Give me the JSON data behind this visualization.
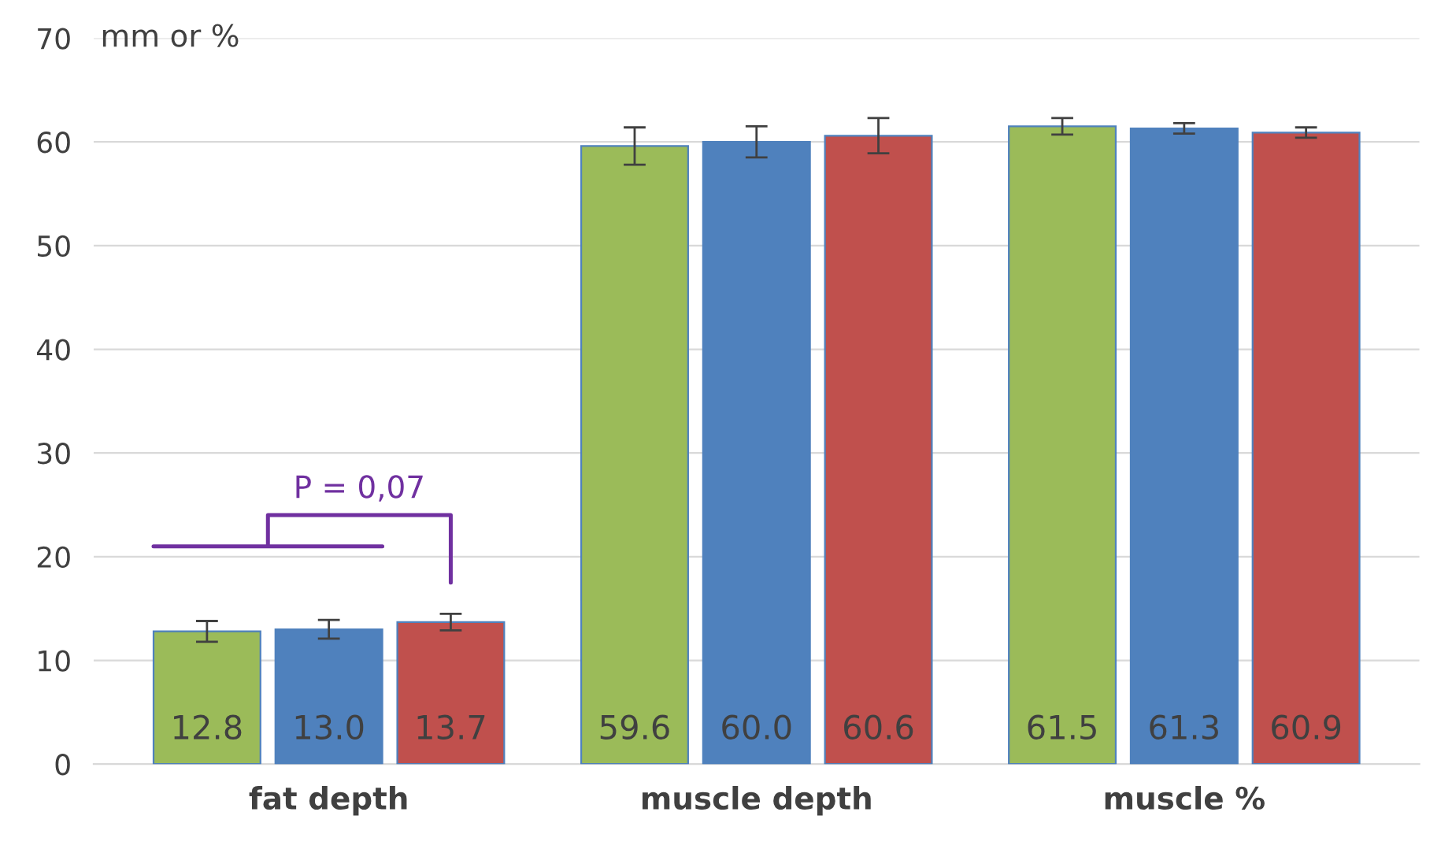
{
  "chart_data": {
    "type": "bar",
    "ylabel": "mm or %",
    "categories": [
      "fat depth",
      "muscle depth",
      "muscle %"
    ],
    "series": [
      {
        "color": "#9bbb59",
        "values": [
          12.8,
          59.6,
          61.5
        ],
        "errors": [
          1.0,
          1.8,
          0.8
        ],
        "value_labels": [
          "12.8",
          "59.6",
          "61.5"
        ]
      },
      {
        "color": "#4f81bd",
        "values": [
          13.0,
          60.0,
          61.3
        ],
        "errors": [
          0.9,
          1.5,
          0.5
        ],
        "value_labels": [
          "13.0",
          "60.0",
          "61.3"
        ]
      },
      {
        "color": "#c0504d",
        "values": [
          13.7,
          60.6,
          60.9
        ],
        "errors": [
          0.8,
          1.7,
          0.5
        ],
        "value_labels": [
          "13.7",
          "60.6",
          "60.9"
        ]
      }
    ],
    "ylim": [
      0,
      70
    ],
    "yticks": [
      0,
      10,
      20,
      30,
      40,
      50,
      60,
      70
    ],
    "grid": "y",
    "legend": false,
    "annotations": [
      "P = 0,07"
    ]
  }
}
